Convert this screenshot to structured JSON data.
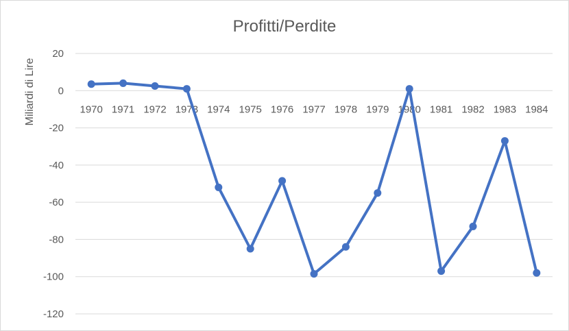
{
  "chart_data": {
    "type": "line",
    "title": "Profitti/Perdite",
    "ylabel": "Miliardi di Lire",
    "xlabel": "",
    "categories": [
      "1970",
      "1971",
      "1972",
      "1973",
      "1974",
      "1975",
      "1976",
      "1977",
      "1978",
      "1979",
      "1980",
      "1981",
      "1982",
      "1983",
      "1984"
    ],
    "series": [
      {
        "values": [
          3.5,
          4,
          2.5,
          1,
          -52,
          -85,
          -48.5,
          -98.5,
          -84,
          -55,
          1,
          -97,
          -73,
          -27,
          -98
        ]
      }
    ],
    "ylim": [
      -120,
      20
    ],
    "yticks": [
      20,
      0,
      -20,
      -40,
      -60,
      -80,
      -100,
      -120
    ],
    "grid": true,
    "legend": "none",
    "line_color": "#4472c4"
  }
}
